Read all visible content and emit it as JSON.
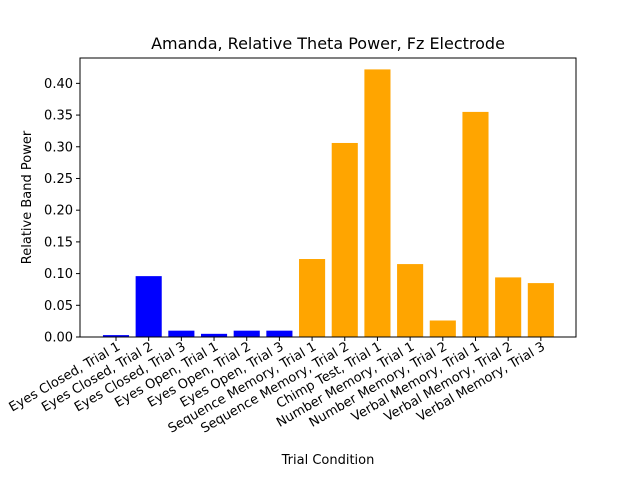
{
  "chart_data": {
    "type": "bar",
    "title": "Amanda, Relative Theta Power, Fz Electrode",
    "xlabel": "Trial Condition",
    "ylabel": "Relative Band Power",
    "ylim": [
      0,
      0.44
    ],
    "yticks": [
      "0.00",
      "0.05",
      "0.10",
      "0.15",
      "0.20",
      "0.25",
      "0.30",
      "0.35",
      "0.40"
    ],
    "grid": false,
    "categories": [
      "Eyes Closed, Trial 1",
      "Eyes Closed, Trial 2",
      "Eyes Closed, Trial 3",
      "Eyes Open, Trial 1",
      "Eyes Open, Trial 2",
      "Eyes Open, Trial 3",
      "Sequence Memory, Trial 1",
      "Sequence Memory, Trial 2",
      "Chimp Test, Trial 1",
      "Number Memory, Trial 1",
      "Number Memory, Trial 2",
      "Verbal Memory, Trial 1",
      "Verbal Memory, Trial 2",
      "Verbal Memory, Trial 3"
    ],
    "values": [
      0.003,
      0.096,
      0.01,
      0.005,
      0.01,
      0.01,
      0.123,
      0.306,
      0.422,
      0.115,
      0.026,
      0.355,
      0.094,
      0.085
    ],
    "bar_colors": [
      "#0000ff",
      "#0000ff",
      "#0000ff",
      "#0000ff",
      "#0000ff",
      "#0000ff",
      "#ffa500",
      "#ffa500",
      "#ffa500",
      "#ffa500",
      "#ffa500",
      "#ffa500",
      "#ffa500",
      "#ffa500"
    ]
  }
}
